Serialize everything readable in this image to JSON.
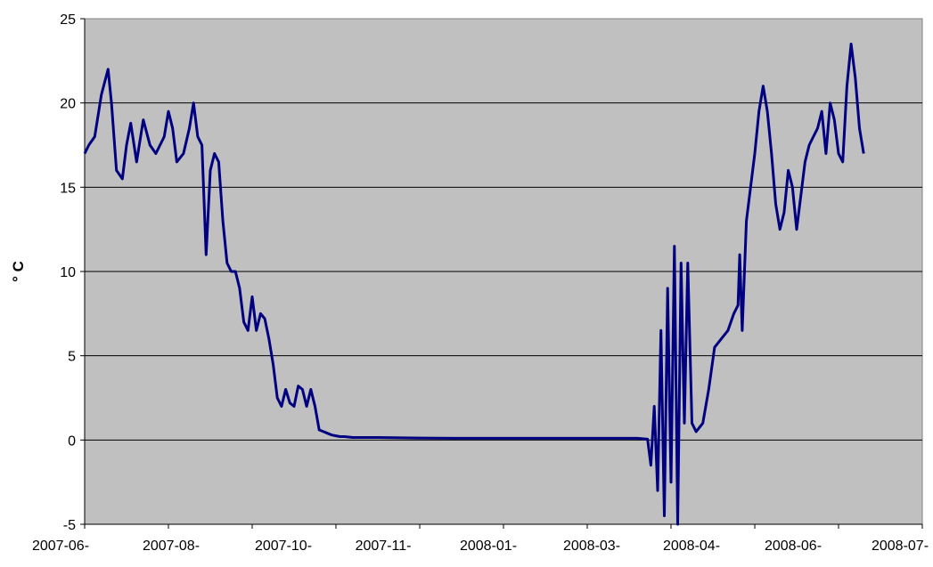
{
  "chart_data": {
    "type": "line",
    "title": "",
    "xlabel": "",
    "ylabel": "° C",
    "ylim": [
      -5,
      25
    ],
    "y_ticks": [
      -5,
      0,
      5,
      10,
      15,
      20,
      25
    ],
    "x_ticks": [
      "2007-06-",
      "2007-08-",
      "2007-10-",
      "2007-11-",
      "2008-01-",
      "2008-03-",
      "2008-04-",
      "2008-06-",
      "2008-07-"
    ],
    "grid": "horizontal",
    "legend": "none",
    "colors": {
      "line": "#000080",
      "plot_background": "#c0c0c0"
    },
    "series": [
      {
        "name": "",
        "x": [
          0,
          0.05,
          0.12,
          0.2,
          0.28,
          0.32,
          0.38,
          0.45,
          0.5,
          0.55,
          0.62,
          0.7,
          0.78,
          0.85,
          0.95,
          1.0,
          1.05,
          1.1,
          1.18,
          1.25,
          1.3,
          1.35,
          1.4,
          1.45,
          1.5,
          1.55,
          1.6,
          1.65,
          1.7,
          1.75,
          1.8,
          1.85,
          1.9,
          1.95,
          2.0,
          2.05,
          2.1,
          2.15,
          2.2,
          2.25,
          2.3,
          2.35,
          2.4,
          2.45,
          2.5,
          2.55,
          2.6,
          2.65,
          2.7,
          2.75,
          2.8,
          2.85,
          2.9,
          2.95,
          3.0,
          3.05,
          3.1,
          3.2,
          3.5,
          4.0,
          4.5,
          5.0,
          5.5,
          6.0,
          6.6,
          6.72,
          6.76,
          6.8,
          6.84,
          6.88,
          6.92,
          6.96,
          7.0,
          7.04,
          7.08,
          7.12,
          7.16,
          7.2,
          7.25,
          7.3,
          7.38,
          7.45,
          7.52,
          7.6,
          7.68,
          7.75,
          7.8,
          7.82,
          7.85,
          7.9,
          7.95,
          8.0,
          8.05,
          8.1,
          8.15,
          8.2,
          8.25,
          8.3,
          8.35,
          8.4,
          8.45,
          8.5,
          8.55,
          8.6,
          8.65,
          8.7,
          8.75,
          8.8,
          8.85,
          8.9,
          8.95,
          9.0,
          9.05,
          9.1,
          9.15,
          9.2,
          9.25,
          9.3
        ],
        "y": [
          17.0,
          17.5,
          18.0,
          20.5,
          22.0,
          20.0,
          16.0,
          15.5,
          17.5,
          18.8,
          16.5,
          19.0,
          17.5,
          17.0,
          18.0,
          19.5,
          18.5,
          16.5,
          17.0,
          18.5,
          20.0,
          18.0,
          17.5,
          11.0,
          16.0,
          17.0,
          16.5,
          13.0,
          10.5,
          10.0,
          10.0,
          9.0,
          7.0,
          6.5,
          8.5,
          6.5,
          7.5,
          7.2,
          6.0,
          4.5,
          2.5,
          2.0,
          3.0,
          2.2,
          2.0,
          3.2,
          3.0,
          2.0,
          3.0,
          2.0,
          0.6,
          0.5,
          0.4,
          0.3,
          0.25,
          0.2,
          0.2,
          0.15,
          0.15,
          0.12,
          0.1,
          0.1,
          0.1,
          0.1,
          0.1,
          0.05,
          -1.5,
          2.0,
          -3.0,
          6.5,
          -4.5,
          9.0,
          -2.5,
          11.5,
          -5.0,
          10.5,
          1.0,
          10.5,
          1.0,
          0.5,
          1.0,
          3.0,
          5.5,
          6.0,
          6.5,
          7.5,
          8.0,
          11.0,
          6.5,
          13.0,
          15.0,
          17.0,
          19.5,
          21.0,
          19.5,
          17.0,
          14.0,
          12.5,
          13.5,
          16.0,
          15.0,
          12.5,
          14.5,
          16.5,
          17.5,
          18.0,
          18.5,
          19.5,
          17.0,
          20.0,
          19.0,
          17.0,
          16.5,
          21.0,
          23.5,
          21.5,
          18.5,
          17.0
        ]
      }
    ]
  }
}
